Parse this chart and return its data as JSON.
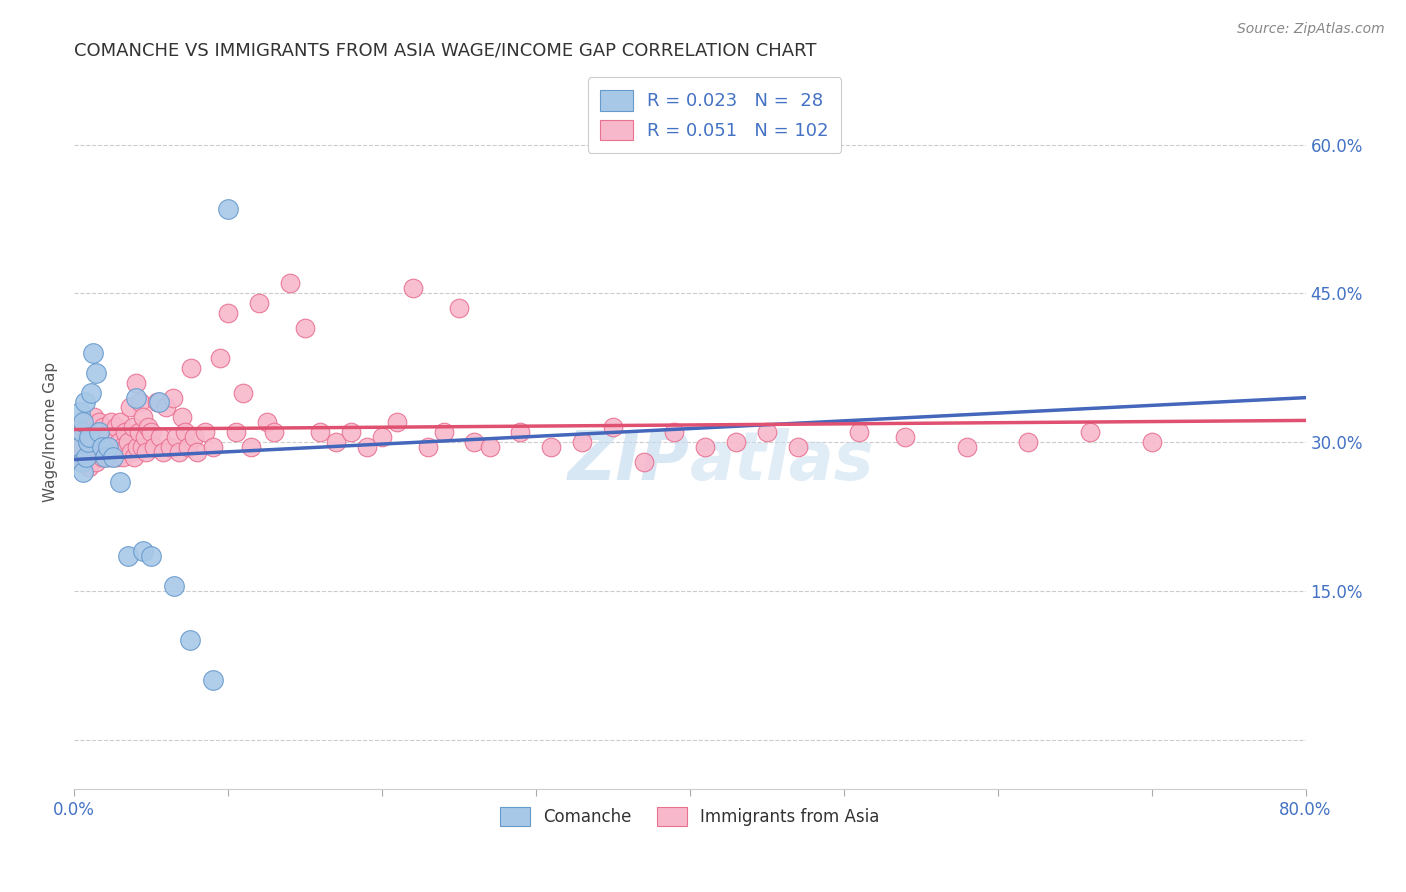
{
  "title": "COMANCHE VS IMMIGRANTS FROM ASIA WAGE/INCOME GAP CORRELATION CHART",
  "source": "Source: ZipAtlas.com",
  "ylabel": "Wage/Income Gap",
  "xmin": 0.0,
  "xmax": 0.8,
  "ymin": -0.05,
  "ymax": 0.67,
  "yticks": [
    0.0,
    0.15,
    0.3,
    0.45,
    0.6
  ],
  "ytick_labels": [
    "",
    "15.0%",
    "30.0%",
    "45.0%",
    "60.0%"
  ],
  "color_blue": "#a8c8e8",
  "color_blue_edge": "#6699cc",
  "color_pink": "#f8b8cc",
  "color_pink_edge": "#e87090",
  "line_blue": "#4466bb",
  "line_pink": "#e05070",
  "watermark_color": "#c8ddf0",
  "title_color": "#333333",
  "axis_color": "#4472c4",
  "source_color": "#888888",
  "comanche_x": [
    0.003,
    0.004,
    0.005,
    0.005,
    0.006,
    0.006,
    0.007,
    0.008,
    0.009,
    0.01,
    0.011,
    0.012,
    0.014,
    0.016,
    0.018,
    0.02,
    0.022,
    0.025,
    0.03,
    0.035,
    0.04,
    0.045,
    0.05,
    0.055,
    0.065,
    0.075,
    0.09,
    0.1
  ],
  "comanche_y": [
    0.295,
    0.33,
    0.28,
    0.31,
    0.27,
    0.32,
    0.34,
    0.285,
    0.3,
    0.305,
    0.35,
    0.39,
    0.37,
    0.31,
    0.295,
    0.285,
    0.295,
    0.285,
    0.26,
    0.185,
    0.345,
    0.19,
    0.185,
    0.34,
    0.155,
    0.1,
    0.06,
    0.535
  ],
  "asia_x": [
    0.003,
    0.004,
    0.005,
    0.006,
    0.007,
    0.008,
    0.009,
    0.01,
    0.011,
    0.012,
    0.013,
    0.014,
    0.015,
    0.016,
    0.017,
    0.018,
    0.019,
    0.02,
    0.021,
    0.022,
    0.023,
    0.024,
    0.025,
    0.026,
    0.027,
    0.028,
    0.029,
    0.03,
    0.031,
    0.032,
    0.033,
    0.034,
    0.035,
    0.036,
    0.037,
    0.038,
    0.039,
    0.04,
    0.041,
    0.042,
    0.043,
    0.044,
    0.045,
    0.046,
    0.047,
    0.048,
    0.05,
    0.052,
    0.054,
    0.056,
    0.058,
    0.06,
    0.062,
    0.064,
    0.066,
    0.068,
    0.07,
    0.072,
    0.074,
    0.076,
    0.078,
    0.08,
    0.085,
    0.09,
    0.095,
    0.1,
    0.105,
    0.11,
    0.115,
    0.12,
    0.125,
    0.13,
    0.14,
    0.15,
    0.16,
    0.17,
    0.18,
    0.19,
    0.2,
    0.21,
    0.22,
    0.23,
    0.24,
    0.25,
    0.26,
    0.27,
    0.29,
    0.31,
    0.33,
    0.35,
    0.37,
    0.39,
    0.41,
    0.43,
    0.45,
    0.47,
    0.51,
    0.54,
    0.58,
    0.62,
    0.66,
    0.7
  ],
  "asia_y": [
    0.3,
    0.285,
    0.315,
    0.295,
    0.28,
    0.32,
    0.305,
    0.275,
    0.31,
    0.295,
    0.325,
    0.28,
    0.3,
    0.32,
    0.29,
    0.285,
    0.315,
    0.305,
    0.295,
    0.31,
    0.285,
    0.32,
    0.3,
    0.29,
    0.315,
    0.285,
    0.3,
    0.32,
    0.295,
    0.285,
    0.31,
    0.295,
    0.3,
    0.335,
    0.29,
    0.315,
    0.285,
    0.36,
    0.295,
    0.31,
    0.34,
    0.295,
    0.325,
    0.305,
    0.29,
    0.315,
    0.31,
    0.295,
    0.34,
    0.305,
    0.29,
    0.335,
    0.295,
    0.345,
    0.305,
    0.29,
    0.325,
    0.31,
    0.295,
    0.375,
    0.305,
    0.29,
    0.31,
    0.295,
    0.385,
    0.43,
    0.31,
    0.35,
    0.295,
    0.44,
    0.32,
    0.31,
    0.46,
    0.415,
    0.31,
    0.3,
    0.31,
    0.295,
    0.305,
    0.32,
    0.455,
    0.295,
    0.31,
    0.435,
    0.3,
    0.295,
    0.31,
    0.295,
    0.3,
    0.315,
    0.28,
    0.31,
    0.295,
    0.3,
    0.31,
    0.295,
    0.31,
    0.305,
    0.295,
    0.3,
    0.31,
    0.3
  ]
}
